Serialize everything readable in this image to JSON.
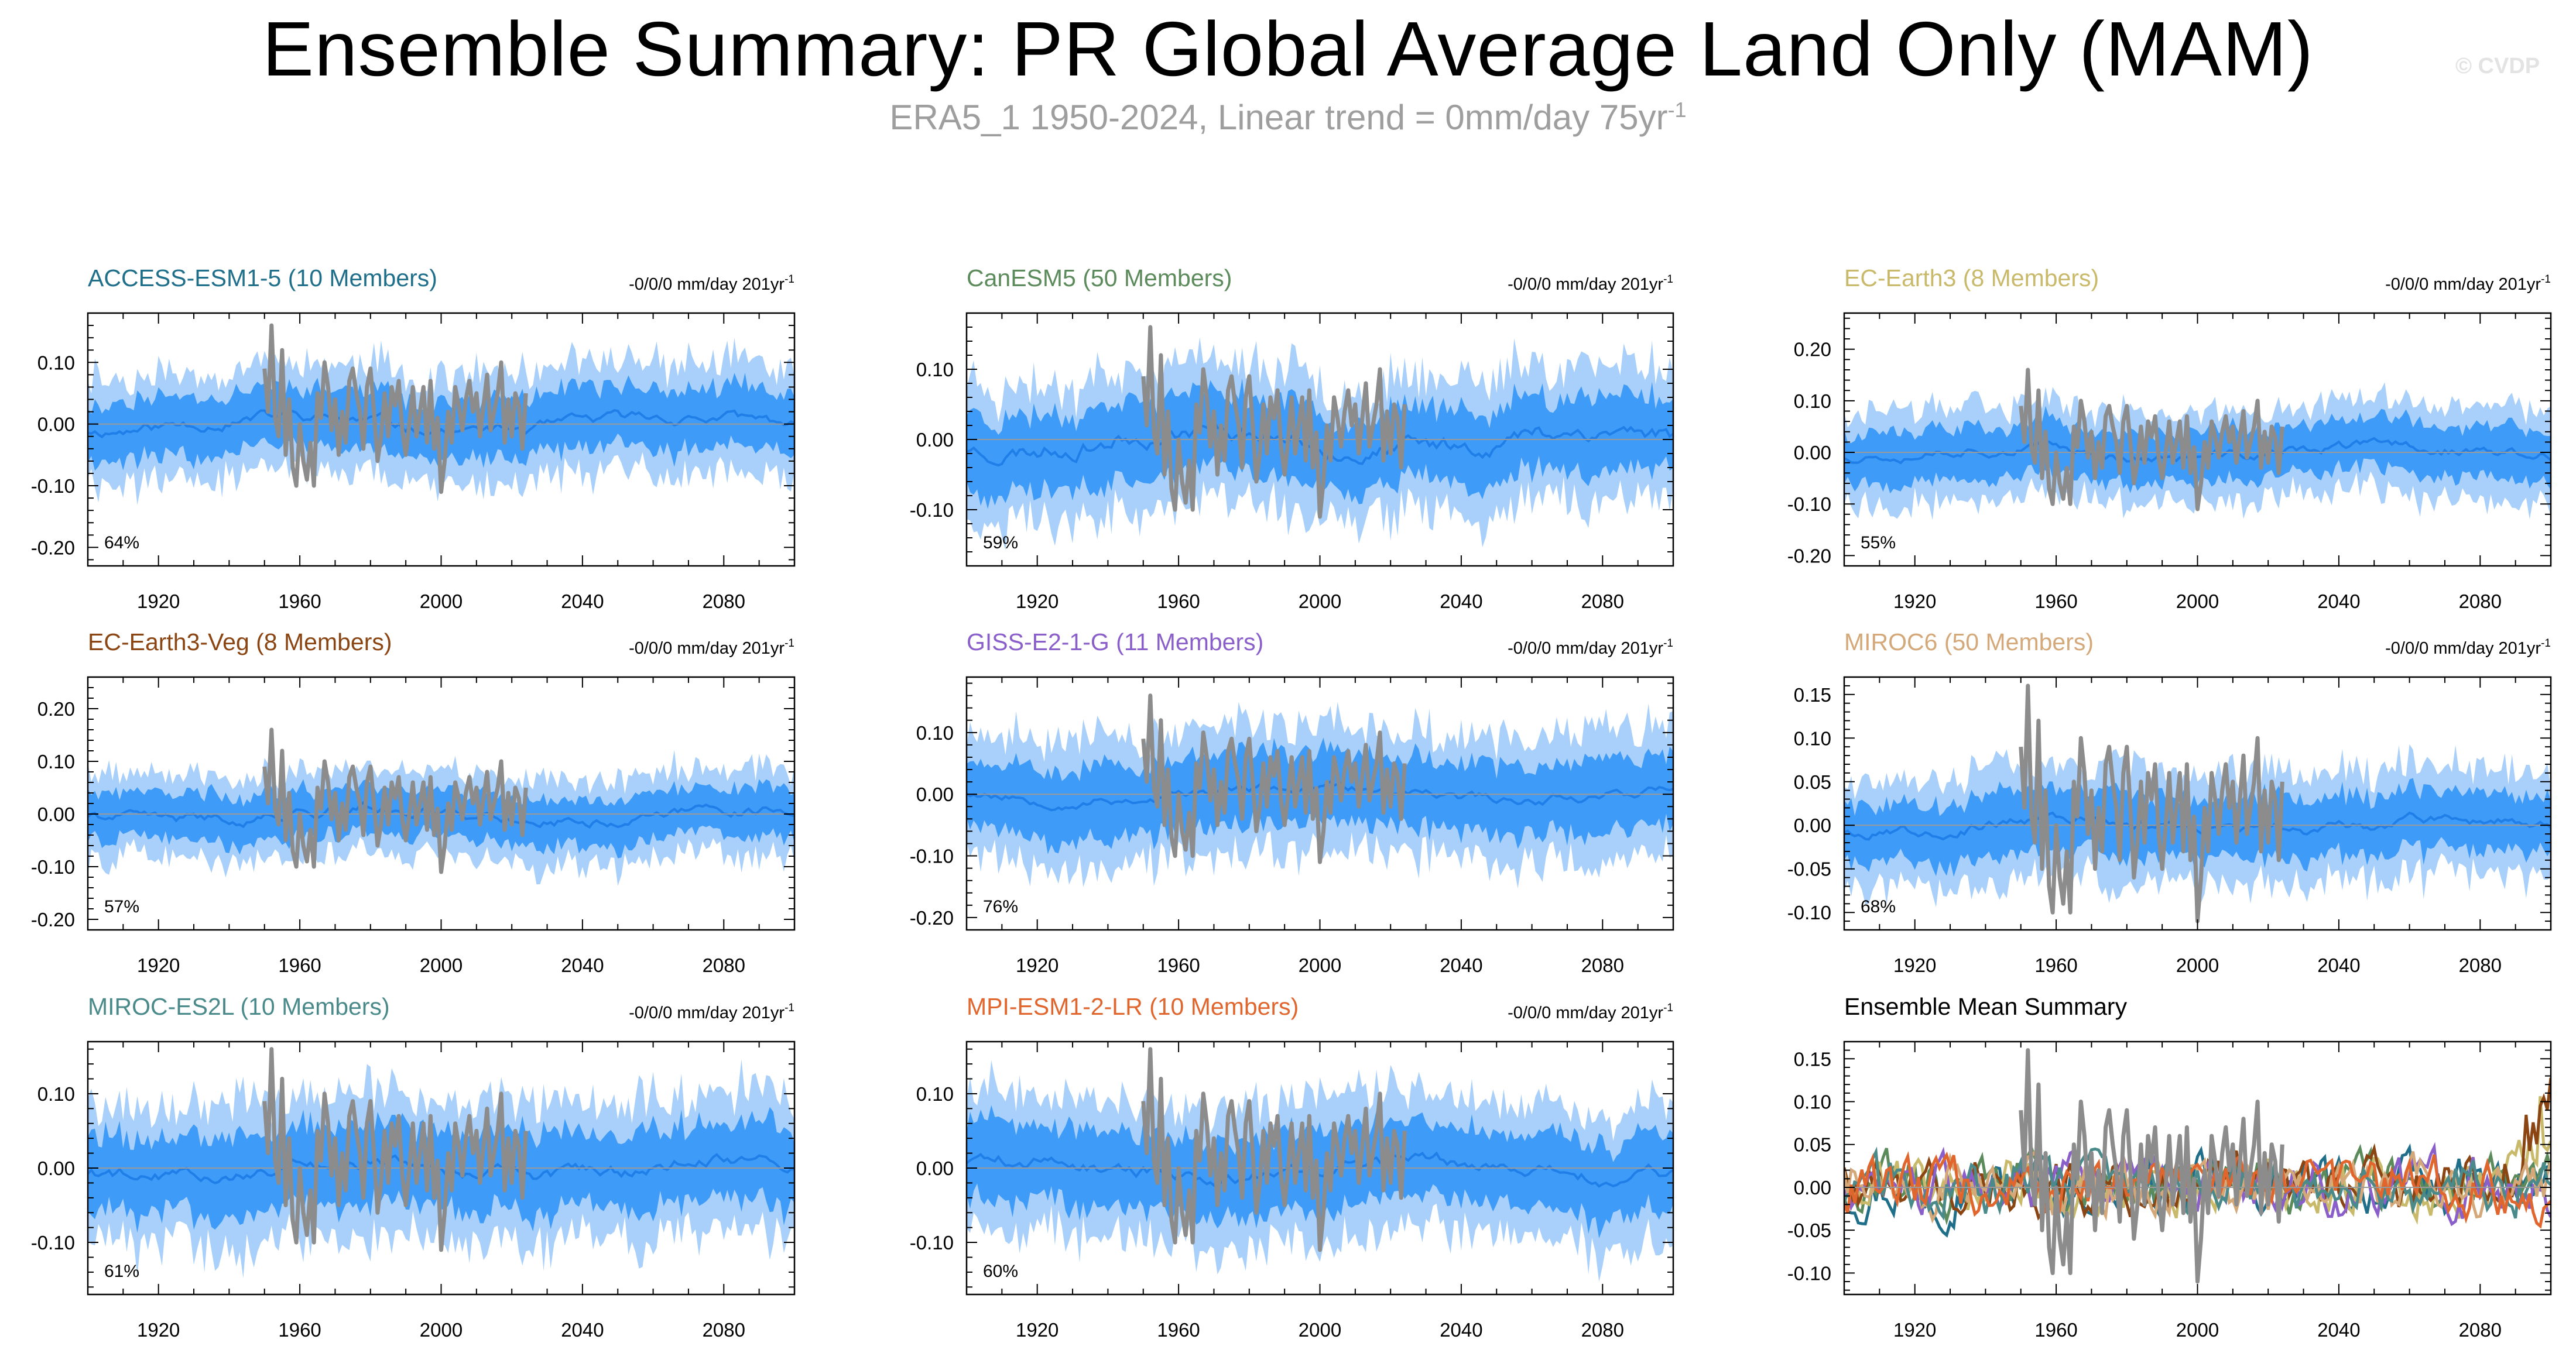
{
  "page": {
    "title": "Ensemble Summary: PR Global Average Land Only (MAM)",
    "subtitle_main": "ERA5_1 1950-2024, Linear trend = 0mm/day 75yr",
    "subtitle_sup": "-1",
    "watermark": "© CVDP"
  },
  "colors": {
    "band_outer": "#a8d0fa",
    "band_inner": "#3e9bf7",
    "ens_mean": "#1f7ee8",
    "obs": "#8c8c8c",
    "zero_line": "#9a9a9a",
    "axis": "#000000"
  },
  "chart_data": [
    {
      "type": "line",
      "id": "access",
      "title": "ACCESS-ESM1-5 (10 Members)",
      "title_color": "#1f6f8b",
      "trend": "-0/0/0 mm/day 201yr",
      "trend_sup": "-1",
      "percent": "64%",
      "xlim": [
        1900,
        2100
      ],
      "ylim": [
        -0.23,
        0.18
      ],
      "yticks": [
        -0.2,
        -0.1,
        0.0,
        0.1
      ],
      "ytick_labels": [
        "-0.20",
        "-0.10",
        "0.00",
        "0.10"
      ],
      "xticks": [
        1920,
        1960,
        2000,
        2040,
        2080
      ],
      "xtick_labels": [
        "1920",
        "1960",
        "2000",
        "2040",
        "2080"
      ],
      "spread": 0.055,
      "mean_amp": 0.018,
      "seed": 11
    },
    {
      "type": "line",
      "id": "canesm5",
      "title": "CanESM5 (50 Members)",
      "title_color": "#5b8a5b",
      "trend": "-0/0/0 mm/day 201yr",
      "trend_sup": "-1",
      "percent": "59%",
      "xlim": [
        1900,
        2100
      ],
      "ylim": [
        -0.18,
        0.18
      ],
      "yticks": [
        -0.1,
        0.0,
        0.1
      ],
      "ytick_labels": [
        "-0.10",
        "0.00",
        "0.10"
      ],
      "xticks": [
        1920,
        1960,
        2000,
        2040,
        2080
      ],
      "xtick_labels": [
        "1920",
        "1960",
        "2000",
        "2040",
        "2080"
      ],
      "spread": 0.06,
      "mean_amp": 0.025,
      "seed": 23
    },
    {
      "type": "line",
      "id": "ecearth3",
      "title": "EC-Earth3 (8 Members)",
      "title_color": "#c9b96a",
      "trend": "-0/0/0 mm/day 201yr",
      "trend_sup": "-1",
      "percent": "55%",
      "xlim": [
        1900,
        2100
      ],
      "ylim": [
        -0.22,
        0.27
      ],
      "yticks": [
        -0.2,
        -0.1,
        0.0,
        0.1,
        0.2
      ],
      "ytick_labels": [
        "-0.20",
        "-0.10",
        "0.00",
        "0.10",
        "0.20"
      ],
      "xticks": [
        1920,
        1960,
        2000,
        2040,
        2080
      ],
      "xtick_labels": [
        "1920",
        "1960",
        "2000",
        "2040",
        "2080"
      ],
      "spread": 0.055,
      "mean_amp": 0.02,
      "seed": 37
    },
    {
      "type": "line",
      "id": "ecearth3veg",
      "title": "EC-Earth3-Veg (8 Members)",
      "title_color": "#8b4513",
      "trend": "-0/0/0 mm/day 201yr",
      "trend_sup": "-1",
      "percent": "57%",
      "xlim": [
        1900,
        2100
      ],
      "ylim": [
        -0.22,
        0.26
      ],
      "yticks": [
        -0.2,
        -0.1,
        0.0,
        0.1,
        0.2
      ],
      "ytick_labels": [
        "-0.20",
        "-0.10",
        "0.00",
        "0.10",
        "0.20"
      ],
      "xticks": [
        1920,
        1960,
        2000,
        2040,
        2080
      ],
      "xtick_labels": [
        "1920",
        "1960",
        "2000",
        "2040",
        "2080"
      ],
      "spread": 0.05,
      "mean_amp": 0.02,
      "seed": 41
    },
    {
      "type": "line",
      "id": "giss",
      "title": "GISS-E2-1-G (11 Members)",
      "title_color": "#8a5fc9",
      "trend": "-0/0/0 mm/day 201yr",
      "trend_sup": "-1",
      "percent": "76%",
      "xlim": [
        1900,
        2100
      ],
      "ylim": [
        -0.22,
        0.19
      ],
      "yticks": [
        -0.2,
        -0.1,
        0.0,
        0.1
      ],
      "ytick_labels": [
        "-0.20",
        "-0.10",
        "0.00",
        "0.10"
      ],
      "xticks": [
        1920,
        1960,
        2000,
        2040,
        2080
      ],
      "xtick_labels": [
        "1920",
        "1960",
        "2000",
        "2040",
        "2080"
      ],
      "spread": 0.065,
      "mean_amp": 0.015,
      "seed": 53
    },
    {
      "type": "line",
      "id": "miroc6",
      "title": "MIROC6 (50 Members)",
      "title_color": "#d4a878",
      "trend": "-0/0/0 mm/day 201yr",
      "trend_sup": "-1",
      "percent": "68%",
      "xlim": [
        1900,
        2100
      ],
      "ylim": [
        -0.12,
        0.17
      ],
      "yticks": [
        -0.1,
        -0.05,
        0.0,
        0.05,
        0.1,
        0.15
      ],
      "ytick_labels": [
        "-0.10",
        "-0.05",
        "0.00",
        "0.05",
        "0.10",
        "0.15"
      ],
      "xticks": [
        1920,
        1960,
        2000,
        2040,
        2080
      ],
      "xtick_labels": [
        "1920",
        "1960",
        "2000",
        "2040",
        "2080"
      ],
      "spread": 0.04,
      "mean_amp": 0.012,
      "seed": 67
    },
    {
      "type": "line",
      "id": "miroces2l",
      "title": "MIROC-ES2L (10 Members)",
      "title_color": "#4a8a8a",
      "trend": "-0/0/0 mm/day 201yr",
      "trend_sup": "-1",
      "percent": "61%",
      "xlim": [
        1900,
        2100
      ],
      "ylim": [
        -0.17,
        0.17
      ],
      "yticks": [
        -0.1,
        0.0,
        0.1
      ],
      "ytick_labels": [
        "-0.10",
        "0.00",
        "0.10"
      ],
      "xticks": [
        1920,
        1960,
        2000,
        2040,
        2080
      ],
      "xtick_labels": [
        "1920",
        "1960",
        "2000",
        "2040",
        "2080"
      ],
      "spread": 0.06,
      "mean_amp": 0.018,
      "seed": 79
    },
    {
      "type": "line",
      "id": "mpi",
      "title": "MPI-ESM1-2-LR (10 Members)",
      "title_color": "#e0662e",
      "trend": "-0/0/0 mm/day 201yr",
      "trend_sup": "-1",
      "percent": "60%",
      "xlim": [
        1900,
        2100
      ],
      "ylim": [
        -0.17,
        0.17
      ],
      "yticks": [
        -0.1,
        0.0,
        0.1
      ],
      "ytick_labels": [
        "-0.10",
        "0.00",
        "0.10"
      ],
      "xticks": [
        1920,
        1960,
        2000,
        2040,
        2080
      ],
      "xtick_labels": [
        "1920",
        "1960",
        "2000",
        "2040",
        "2080"
      ],
      "spread": 0.058,
      "mean_amp": 0.018,
      "seed": 89
    },
    {
      "type": "line",
      "id": "summary",
      "title": "Ensemble Mean Summary",
      "title_color": "#000000",
      "summary": true,
      "xlim": [
        1900,
        2100
      ],
      "ylim": [
        -0.125,
        0.17
      ],
      "yticks": [
        -0.1,
        -0.05,
        0.0,
        0.05,
        0.1,
        0.15
      ],
      "ytick_labels": [
        "-0.10",
        "-0.05",
        "0.00",
        "0.05",
        "0.10",
        "0.15"
      ],
      "xticks": [
        1920,
        1960,
        2000,
        2040,
        2080
      ],
      "xtick_labels": [
        "1920",
        "1960",
        "2000",
        "2040",
        "2080"
      ],
      "series_colors": [
        "#1f6f8b",
        "#5b8a5b",
        "#c9b96a",
        "#8b4513",
        "#8a5fc9",
        "#d4a878",
        "#4a8a8a",
        "#e0662e"
      ],
      "seed": 97
    }
  ],
  "observations": {
    "name": "ERA5_1",
    "years": [
      1950,
      1951,
      1952,
      1953,
      1954,
      1955,
      1956,
      1957,
      1958,
      1959,
      1960,
      1961,
      1962,
      1963,
      1964,
      1965,
      1966,
      1967,
      1968,
      1969,
      1970,
      1971,
      1972,
      1973,
      1974,
      1975,
      1976,
      1977,
      1978,
      1979,
      1980,
      1981,
      1982,
      1983,
      1984,
      1985,
      1986,
      1987,
      1988,
      1989,
      1990,
      1991,
      1992,
      1993,
      1994,
      1995,
      1996,
      1997,
      1998,
      1999,
      2000,
      2001,
      2002,
      2003,
      2004,
      2005,
      2006,
      2007,
      2008,
      2009,
      2010,
      2011,
      2012,
      2013,
      2014,
      2015,
      2016,
      2017,
      2018,
      2019,
      2020,
      2021,
      2022,
      2023,
      2024
    ],
    "values": [
      0.09,
      0.02,
      0.16,
      0.01,
      -0.02,
      0.12,
      -0.05,
      0.04,
      -0.07,
      -0.1,
      0.0,
      -0.06,
      -0.09,
      -0.03,
      -0.1,
      0.05,
      0.01,
      0.1,
      0.06,
      -0.01,
      0.04,
      -0.05,
      0.02,
      -0.03,
      0.07,
      0.09,
      0.05,
      0.02,
      -0.04,
      0.06,
      0.09,
      0.02,
      -0.06,
      -0.02,
      0.05,
      -0.02,
      0.06,
      0.03,
      0.07,
      -0.01,
      -0.05,
      0.0,
      0.06,
      -0.02,
      0.02,
      0.06,
      -0.03,
      0.07,
      -0.04,
      0.01,
      -0.11,
      -0.06,
      0.02,
      -0.03,
      0.06,
      0.03,
      -0.01,
      0.04,
      0.07,
      0.02,
      0.05,
      -0.02,
      0.03,
      0.08,
      -0.01,
      0.02,
      0.05,
      0.1,
      -0.03,
      0.04,
      -0.02,
      0.05,
      0.03,
      -0.04,
      0.05
    ]
  }
}
